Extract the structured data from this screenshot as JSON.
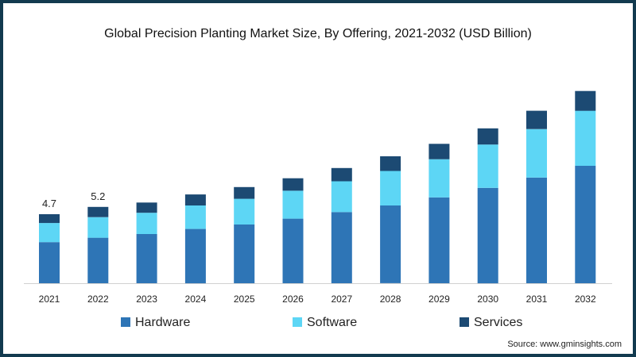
{
  "chart_data": {
    "type": "bar",
    "stacked": true,
    "title": "Global Precision Planting Market Size, By Offering, 2021-2032 (USD Billion)",
    "xlabel": "",
    "ylabel": "",
    "categories": [
      "2021",
      "2022",
      "2023",
      "2024",
      "2025",
      "2026",
      "2027",
      "2028",
      "2029",
      "2030",
      "2031",
      "2032"
    ],
    "series": [
      {
        "name": "Hardware",
        "color": "#2e75b6",
        "values": [
          2.8,
          3.1,
          3.35,
          3.7,
          4.0,
          4.4,
          4.85,
          5.3,
          5.85,
          6.5,
          7.2,
          8.0
        ]
      },
      {
        "name": "Software",
        "color": "#5dd6f5",
        "values": [
          1.3,
          1.4,
          1.45,
          1.6,
          1.75,
          1.9,
          2.1,
          2.35,
          2.6,
          2.95,
          3.3,
          3.75
        ]
      },
      {
        "name": "Services",
        "color": "#1c4a73",
        "values": [
          0.6,
          0.7,
          0.7,
          0.75,
          0.8,
          0.85,
          0.9,
          1.0,
          1.05,
          1.1,
          1.25,
          1.35
        ]
      }
    ],
    "totals_labels": [
      {
        "category": "2021",
        "text": "4.7"
      },
      {
        "category": "2022",
        "text": "5.2"
      }
    ],
    "ylim": [
      0,
      13.3
    ],
    "grid": false,
    "legend": "bottom"
  },
  "source": "Source: www.gminsights.com"
}
